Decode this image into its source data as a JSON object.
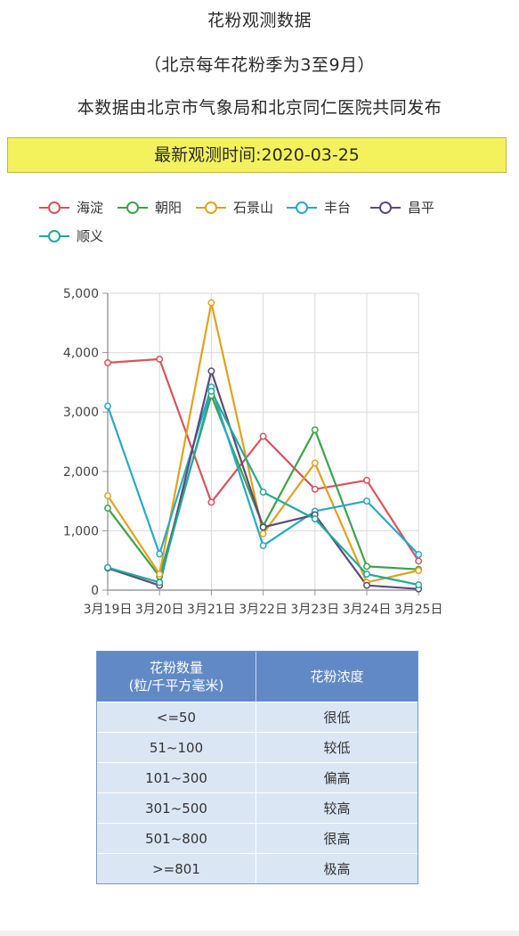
{
  "header": {
    "title": "花粉观测数据",
    "season_note": "（北京每年花粉季为3至9月）",
    "source_note": "本数据由北京市气象局和北京同仁医院共同发布",
    "latest_observation": "最新观测时间:2020-03-25"
  },
  "chart_data": {
    "type": "line",
    "categories": [
      "3月19日",
      "3月20日",
      "3月21日",
      "3月22日",
      "3月23日",
      "3月24日",
      "3月25日"
    ],
    "ylim": [
      0,
      5000
    ],
    "yticks": [
      0,
      1000,
      2000,
      3000,
      4000,
      5000
    ],
    "ytick_labels": [
      "0",
      "1,000",
      "2,000",
      "3,000",
      "4,000",
      "5,000"
    ],
    "grid": true,
    "legend_position": "top-left",
    "series": [
      {
        "name": "海淀",
        "color": "#d9535b",
        "values": [
          3830,
          3890,
          1480,
          2590,
          1700,
          1850,
          490
        ]
      },
      {
        "name": "朝阳",
        "color": "#3fa14a",
        "values": [
          1380,
          230,
          3280,
          1080,
          2700,
          400,
          350
        ]
      },
      {
        "name": "石景山",
        "color": "#e1a21c",
        "values": [
          1590,
          270,
          4840,
          950,
          2140,
          130,
          330
        ]
      },
      {
        "name": "丰台",
        "color": "#27a9c8",
        "values": [
          3100,
          610,
          3420,
          750,
          1330,
          1500,
          600
        ]
      },
      {
        "name": "昌平",
        "color": "#5b4a7a",
        "values": [
          370,
          80,
          3690,
          1060,
          1270,
          80,
          20
        ]
      },
      {
        "name": "顺义",
        "color": "#23a99a",
        "values": [
          380,
          130,
          3350,
          1650,
          1200,
          270,
          90
        ]
      }
    ]
  },
  "levels_table": {
    "header_count": [
      "花粉数量",
      "(粒/千平方毫米)"
    ],
    "header_level": "花粉浓度",
    "rows": [
      {
        "count": "<=50",
        "level": "很低"
      },
      {
        "count": "51~100",
        "level": "较低"
      },
      {
        "count": "101~300",
        "level": "偏高"
      },
      {
        "count": "301~500",
        "level": "较高"
      },
      {
        "count": "501~800",
        "level": "很高"
      },
      {
        "count": ">=801",
        "level": "极高"
      }
    ]
  }
}
